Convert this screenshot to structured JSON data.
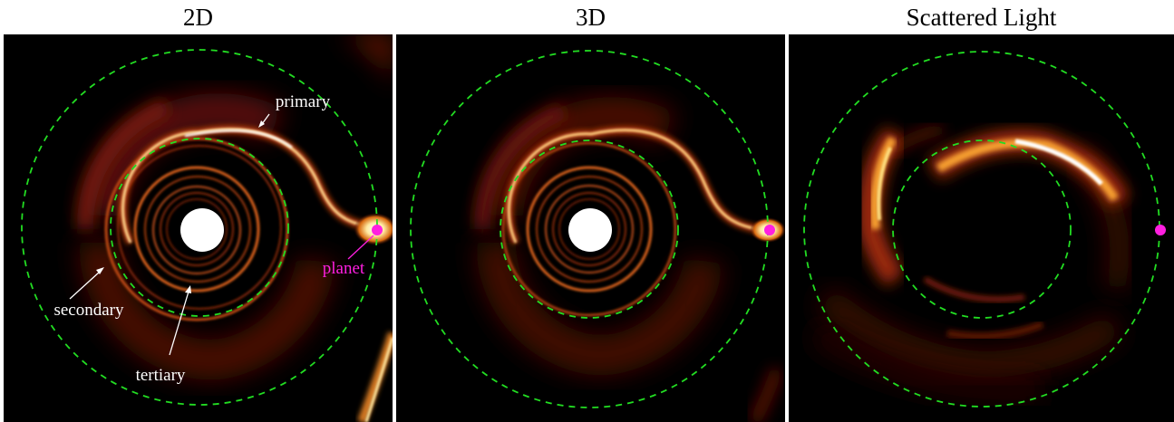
{
  "panels": [
    {
      "title": "2D"
    },
    {
      "title": "3D"
    },
    {
      "title": "Scattered Light"
    }
  ],
  "annotations": {
    "primary": "primary",
    "secondary": "secondary",
    "tertiary": "tertiary",
    "planet": "planet"
  },
  "colors": {
    "orbit_dashed": "#22dd22",
    "planet_marker": "#ff1fe0",
    "planet_label": "#ff1fe0",
    "annotation_text": "#ffffff",
    "background": "#000000"
  }
}
